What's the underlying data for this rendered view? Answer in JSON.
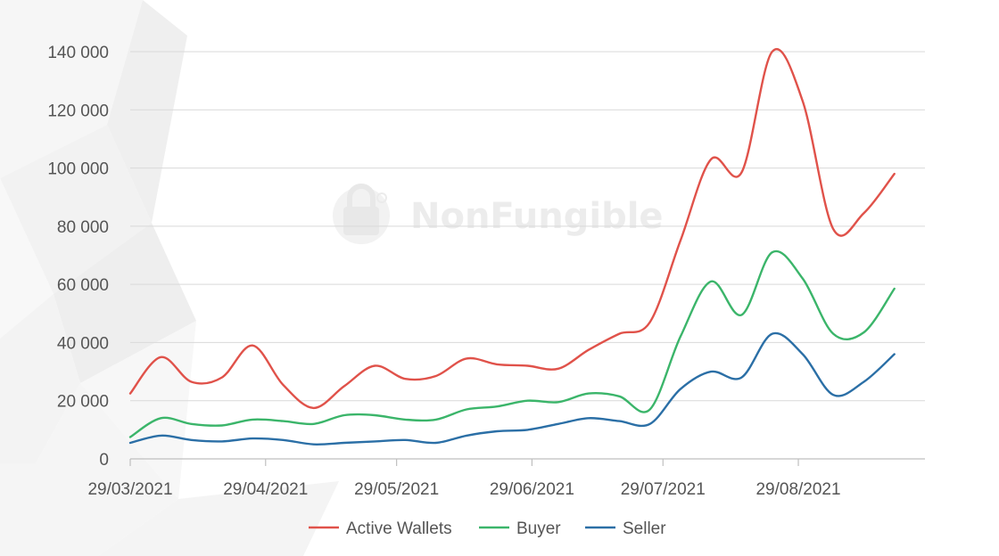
{
  "watermark": {
    "text": "NonFungible"
  },
  "chart_data": {
    "type": "line",
    "title": "",
    "xlabel": "",
    "ylabel": "",
    "ylim": [
      0,
      140000
    ],
    "y_ticks": [
      0,
      20000,
      40000,
      60000,
      80000,
      100000,
      120000,
      140000
    ],
    "y_tick_labels": [
      "0",
      "20 000",
      "40 000",
      "60 000",
      "80 000",
      "100 000",
      "120 000",
      "140 000"
    ],
    "x_tick_labels": [
      "29/03/2021",
      "29/04/2021",
      "29/05/2021",
      "29/06/2021",
      "29/07/2021",
      "29/08/2021"
    ],
    "x_range": [
      "2021-03-29",
      "2021-09-27"
    ],
    "grid": true,
    "legend_position": "bottom",
    "series": [
      {
        "name": "Active Wallets",
        "color": "#e0524a",
        "points": [
          [
            "2021-03-29",
            22500
          ],
          [
            "2021-04-05",
            35000
          ],
          [
            "2021-04-12",
            26500
          ],
          [
            "2021-04-19",
            28000
          ],
          [
            "2021-04-26",
            39000
          ],
          [
            "2021-05-03",
            25500
          ],
          [
            "2021-05-10",
            17500
          ],
          [
            "2021-05-17",
            25000
          ],
          [
            "2021-05-24",
            32000
          ],
          [
            "2021-05-31",
            27500
          ],
          [
            "2021-06-07",
            28500
          ],
          [
            "2021-06-14",
            34500
          ],
          [
            "2021-06-21",
            32500
          ],
          [
            "2021-06-28",
            32000
          ],
          [
            "2021-07-05",
            31000
          ],
          [
            "2021-07-12",
            37500
          ],
          [
            "2021-07-19",
            43000
          ],
          [
            "2021-07-26",
            47000
          ],
          [
            "2021-08-02",
            75000
          ],
          [
            "2021-08-09",
            103000
          ],
          [
            "2021-08-16",
            98500
          ],
          [
            "2021-08-23",
            140000
          ],
          [
            "2021-08-30",
            123000
          ],
          [
            "2021-09-06",
            79000
          ],
          [
            "2021-09-13",
            84500
          ],
          [
            "2021-09-20",
            98000
          ]
        ]
      },
      {
        "name": "Buyer",
        "color": "#3bb56a",
        "points": [
          [
            "2021-03-29",
            7500
          ],
          [
            "2021-04-05",
            14000
          ],
          [
            "2021-04-12",
            12000
          ],
          [
            "2021-04-19",
            11500
          ],
          [
            "2021-04-26",
            13500
          ],
          [
            "2021-05-03",
            13000
          ],
          [
            "2021-05-10",
            12000
          ],
          [
            "2021-05-17",
            15000
          ],
          [
            "2021-05-24",
            15000
          ],
          [
            "2021-05-31",
            13500
          ],
          [
            "2021-06-07",
            13500
          ],
          [
            "2021-06-14",
            17000
          ],
          [
            "2021-06-21",
            18000
          ],
          [
            "2021-06-28",
            20000
          ],
          [
            "2021-07-05",
            19500
          ],
          [
            "2021-07-12",
            22500
          ],
          [
            "2021-07-19",
            21500
          ],
          [
            "2021-07-26",
            17000
          ],
          [
            "2021-08-02",
            42000
          ],
          [
            "2021-08-09",
            61000
          ],
          [
            "2021-08-16",
            49500
          ],
          [
            "2021-08-23",
            71000
          ],
          [
            "2021-08-30",
            62000
          ],
          [
            "2021-09-06",
            43000
          ],
          [
            "2021-09-13",
            43500
          ],
          [
            "2021-09-20",
            58500
          ]
        ]
      },
      {
        "name": "Seller",
        "color": "#2b6fa6",
        "points": [
          [
            "2021-03-29",
            5500
          ],
          [
            "2021-04-05",
            8000
          ],
          [
            "2021-04-12",
            6500
          ],
          [
            "2021-04-19",
            6000
          ],
          [
            "2021-04-26",
            7000
          ],
          [
            "2021-05-03",
            6500
          ],
          [
            "2021-05-10",
            5000
          ],
          [
            "2021-05-17",
            5500
          ],
          [
            "2021-05-24",
            6000
          ],
          [
            "2021-05-31",
            6500
          ],
          [
            "2021-06-07",
            5500
          ],
          [
            "2021-06-14",
            8000
          ],
          [
            "2021-06-21",
            9500
          ],
          [
            "2021-06-28",
            10000
          ],
          [
            "2021-07-05",
            12000
          ],
          [
            "2021-07-12",
            14000
          ],
          [
            "2021-07-19",
            13000
          ],
          [
            "2021-07-26",
            12000
          ],
          [
            "2021-08-02",
            24000
          ],
          [
            "2021-08-09",
            30000
          ],
          [
            "2021-08-16",
            28000
          ],
          [
            "2021-08-23",
            43000
          ],
          [
            "2021-08-30",
            36000
          ],
          [
            "2021-09-06",
            22000
          ],
          [
            "2021-09-13",
            26500
          ],
          [
            "2021-09-20",
            36000
          ]
        ]
      }
    ]
  }
}
